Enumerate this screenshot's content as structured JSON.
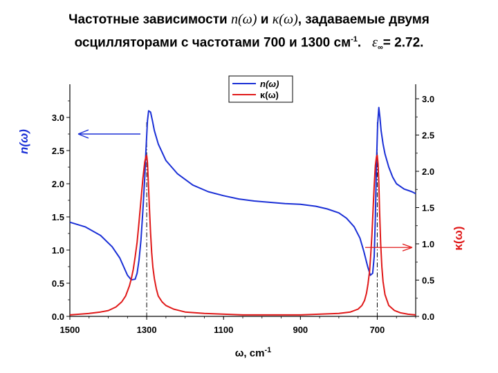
{
  "title": {
    "line1_prefix": "Частотные зависимости ",
    "n_sym": "n(ω)",
    "and": " и ",
    "k_sym": "κ(ω)",
    "line1_suffix": ", задаваемые двумя",
    "line2_prefix": "осцилляторами с частотами 700 и 1300 см",
    "line2_sup": "-1",
    "line2_mid": ". ",
    "eps_sym": "ε",
    "eps_sub": "∞",
    "eps_value": "= 2.72."
  },
  "chart_data": {
    "type": "line",
    "xlabel": "ω, cm-1",
    "ylabel_left": "n(ω)",
    "ylabel_right": "κ(ω)",
    "x_ticks": [
      "1500",
      "1300",
      "1100",
      "900",
      "700"
    ],
    "y_left_ticks": [
      "0.0",
      "0.5",
      "1.0",
      "1.5",
      "2.0",
      "2.5",
      "3.0"
    ],
    "y_right_ticks": [
      "0.0",
      "0.5",
      "1.0",
      "1.5",
      "2.0",
      "2.5",
      "3.0"
    ],
    "xlim": [
      1500,
      600
    ],
    "ylim_left": [
      0,
      3.5
    ],
    "ylim_right": [
      0,
      3.2
    ],
    "legend_placement": "top-center",
    "series": [
      {
        "name": "n(ω)",
        "axis": "left",
        "color": "#1a2fd6",
        "x": [
          1500,
          1460,
          1420,
          1390,
          1370,
          1350,
          1340,
          1330,
          1325,
          1320,
          1315,
          1310,
          1305,
          1302,
          1298,
          1295,
          1290,
          1285,
          1280,
          1270,
          1250,
          1220,
          1180,
          1140,
          1100,
          1060,
          1020,
          980,
          940,
          900,
          860,
          830,
          800,
          780,
          760,
          745,
          735,
          725,
          718,
          712,
          708,
          705,
          702,
          699,
          696,
          693,
          690,
          685,
          680,
          670,
          660,
          650,
          630,
          610,
          600
        ],
        "y": [
          1.42,
          1.35,
          1.22,
          1.05,
          0.88,
          0.62,
          0.55,
          0.56,
          0.65,
          0.85,
          1.15,
          1.6,
          2.1,
          2.5,
          2.95,
          3.1,
          3.08,
          2.95,
          2.8,
          2.6,
          2.35,
          2.15,
          1.98,
          1.88,
          1.82,
          1.77,
          1.74,
          1.72,
          1.7,
          1.69,
          1.66,
          1.62,
          1.56,
          1.48,
          1.35,
          1.18,
          0.98,
          0.75,
          0.62,
          0.65,
          0.9,
          1.5,
          2.3,
          2.9,
          3.15,
          3.0,
          2.8,
          2.6,
          2.45,
          2.25,
          2.1,
          2.0,
          1.92,
          1.88,
          1.85
        ]
      },
      {
        "name": "κ(ω)",
        "axis": "right",
        "color": "#e01818",
        "x": [
          1500,
          1450,
          1420,
          1400,
          1380,
          1365,
          1355,
          1345,
          1340,
          1335,
          1330,
          1325,
          1320,
          1315,
          1310,
          1305,
          1302,
          1300,
          1298,
          1296,
          1293,
          1290,
          1287,
          1284,
          1280,
          1275,
          1270,
          1260,
          1250,
          1230,
          1200,
          1150,
          1050,
          900,
          800,
          770,
          750,
          740,
          733,
          728,
          724,
          720,
          717,
          714,
          711,
          708,
          705,
          702,
          700,
          698,
          696,
          694,
          691,
          688,
          685,
          680,
          670,
          655,
          640,
          620,
          600
        ],
        "y": [
          0.02,
          0.04,
          0.06,
          0.08,
          0.13,
          0.2,
          0.28,
          0.42,
          0.52,
          0.65,
          0.82,
          1.02,
          1.3,
          1.6,
          1.9,
          2.13,
          2.2,
          2.22,
          2.12,
          1.88,
          1.5,
          1.15,
          0.88,
          0.68,
          0.52,
          0.38,
          0.28,
          0.2,
          0.15,
          0.1,
          0.06,
          0.04,
          0.02,
          0.02,
          0.04,
          0.06,
          0.1,
          0.15,
          0.22,
          0.32,
          0.45,
          0.62,
          0.85,
          1.12,
          1.45,
          1.8,
          2.08,
          2.2,
          2.22,
          2.1,
          1.85,
          1.45,
          1.0,
          0.68,
          0.48,
          0.3,
          0.15,
          0.08,
          0.05,
          0.03,
          0.02
        ]
      }
    ],
    "arrows": [
      {
        "points_to": "left axis"
      },
      {
        "points_to": "right axis"
      }
    ],
    "markers_at": [
      1300,
      700
    ]
  }
}
